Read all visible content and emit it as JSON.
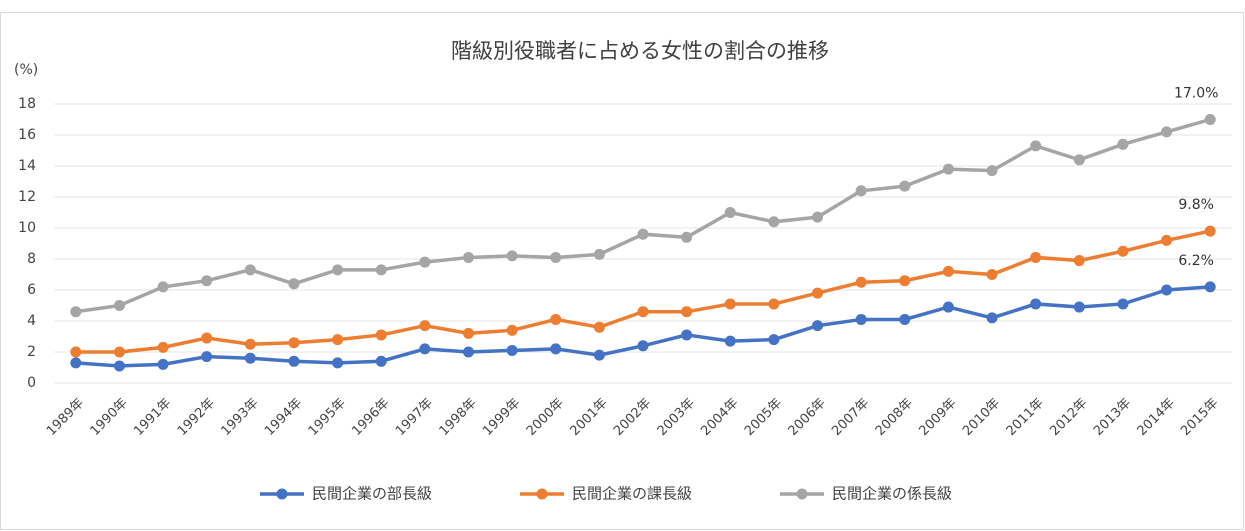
{
  "chart_data": {
    "type": "line",
    "title": "階級別役職者に占める女性の割合の推移",
    "y_label": "(%)",
    "categories": [
      "1989年",
      "1990年",
      "1991年",
      "1992年",
      "1993年",
      "1994年",
      "1995年",
      "1996年",
      "1997年",
      "1998年",
      "1999年",
      "2000年",
      "2001年",
      "2002年",
      "2003年",
      "2004年",
      "2005年",
      "2006年",
      "2007年",
      "2008年",
      "2009年",
      "2010年",
      "2011年",
      "2012年",
      "2013年",
      "2014年",
      "2015年"
    ],
    "series": [
      {
        "name": "民間企業の部長級",
        "color": "#4472c4",
        "values": [
          1.3,
          1.1,
          1.2,
          1.7,
          1.6,
          1.4,
          1.3,
          1.4,
          2.2,
          2.0,
          2.1,
          2.2,
          1.8,
          2.4,
          3.1,
          2.7,
          2.8,
          3.7,
          4.1,
          4.1,
          4.9,
          4.2,
          5.1,
          4.9,
          5.1,
          6.0,
          6.2
        ],
        "value_labels": [
          null,
          null,
          null,
          null,
          null,
          null,
          null,
          null,
          null,
          null,
          null,
          null,
          null,
          null,
          null,
          null,
          null,
          null,
          null,
          null,
          null,
          null,
          null,
          null,
          null,
          null,
          "6.2%"
        ]
      },
      {
        "name": "民間企業の課長級",
        "color": "#ed7d31",
        "values": [
          2.0,
          2.0,
          2.3,
          2.9,
          2.5,
          2.6,
          2.8,
          3.1,
          3.7,
          3.2,
          3.4,
          4.1,
          3.6,
          4.6,
          4.6,
          5.1,
          5.1,
          5.8,
          6.5,
          6.6,
          7.2,
          7.0,
          8.1,
          7.9,
          8.5,
          9.2,
          9.8
        ],
        "value_labels": [
          null,
          null,
          null,
          null,
          null,
          null,
          null,
          null,
          null,
          null,
          null,
          null,
          null,
          null,
          null,
          null,
          null,
          null,
          null,
          null,
          null,
          null,
          null,
          null,
          null,
          null,
          "9.8%"
        ]
      },
      {
        "name": "民間企業の係長級",
        "color": "#a5a5a5",
        "values": [
          4.6,
          5.0,
          6.2,
          6.6,
          7.3,
          6.4,
          7.3,
          7.3,
          7.8,
          8.1,
          8.2,
          8.1,
          8.3,
          9.6,
          9.4,
          11.0,
          10.4,
          10.7,
          12.4,
          12.7,
          13.8,
          13.7,
          15.3,
          14.4,
          15.4,
          16.2,
          17.0
        ],
        "value_labels": [
          null,
          null,
          null,
          null,
          null,
          null,
          null,
          null,
          null,
          null,
          null,
          null,
          null,
          null,
          null,
          null,
          null,
          null,
          null,
          null,
          null,
          null,
          null,
          null,
          null,
          null,
          "17.0%"
        ]
      }
    ],
    "ylim": [
      0,
      18
    ],
    "yticks": [
      0,
      2,
      4,
      6,
      8,
      10,
      12,
      14,
      16,
      18
    ],
    "grid": true,
    "legend": "bottom"
  }
}
